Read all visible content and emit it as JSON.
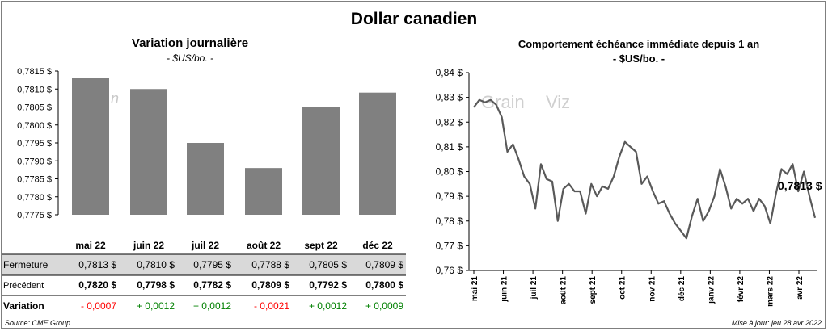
{
  "title": "Dollar canadien",
  "left_panel": {
    "title": "Variation  journalière",
    "subtitle": "- $US/bo. -"
  },
  "right_panel": {
    "title": "Comportement échéance immédiate depuis 1 an",
    "subtitle": "- $US/bo. -"
  },
  "table": {
    "months": [
      "mai 22",
      "juin 22",
      "juil 22",
      "août 22",
      "sept 22",
      "déc 22"
    ],
    "rows": [
      {
        "label": "Fermeture",
        "values": [
          "0,7813 $",
          "0,7810 $",
          "0,7795 $",
          "0,7788 $",
          "0,7805 $",
          "0,7809 $"
        ]
      },
      {
        "label": "Précédent",
        "values": [
          "0,7820 $",
          "0,7798 $",
          "0,7782 $",
          "0,7809 $",
          "0,7792 $",
          "0,7800 $"
        ]
      },
      {
        "label": "Variation",
        "values": [
          "- 0,0007",
          "+ 0,0012",
          "+ 0,0012",
          "- 0,0021",
          "+ 0,0012",
          "+ 0,0009"
        ]
      }
    ]
  },
  "colors": {
    "bar": "#808080",
    "line": "#595959",
    "negative": "#ff0000",
    "positive": "#008000",
    "shade": "#d9d9d9"
  },
  "chart_data": [
    {
      "type": "bar",
      "categories": [
        "mai 22",
        "juin 22",
        "juil 22",
        "août 22",
        "sept 22",
        "déc 22"
      ],
      "values": [
        0.7813,
        0.781,
        0.7795,
        0.7788,
        0.7805,
        0.7809
      ],
      "ylim": [
        0.7775,
        0.7815
      ],
      "yticks": [
        0.7775,
        0.778,
        0.7785,
        0.779,
        0.7795,
        0.78,
        0.7805,
        0.781,
        0.7815
      ],
      "ytick_labels": [
        "0,7775 $",
        "0,7780 $",
        "0,7785 $",
        "0,7790 $",
        "0,7795 $",
        "0,7800 $",
        "0,7805 $",
        "0,7810 $",
        "0,7815 $"
      ],
      "grid": false
    },
    {
      "type": "line",
      "xlabels": [
        "mai 21",
        "juin 21",
        "juil 21",
        "août 21",
        "sept 21",
        "oct 21",
        "nov 21",
        "déc 21",
        "janv 22",
        "févr 22",
        "mars 22",
        "avr 22"
      ],
      "ylim": [
        0.76,
        0.84
      ],
      "yticks": [
        0.76,
        0.77,
        0.78,
        0.79,
        0.8,
        0.81,
        0.82,
        0.83,
        0.84
      ],
      "ytick_labels": [
        "0,76 $",
        "0,77 $",
        "0,78 $",
        "0,79 $",
        "0,80 $",
        "0,81 $",
        "0,82 $",
        "0,83 $",
        "0,84 $"
      ],
      "last_value_label": "0,7813 $",
      "weekly_values": [
        0.826,
        0.829,
        0.828,
        0.829,
        0.827,
        0.822,
        0.808,
        0.811,
        0.805,
        0.798,
        0.795,
        0.785,
        0.803,
        0.797,
        0.796,
        0.78,
        0.793,
        0.795,
        0.792,
        0.792,
        0.783,
        0.795,
        0.79,
        0.794,
        0.793,
        0.798,
        0.806,
        0.812,
        0.81,
        0.808,
        0.795,
        0.798,
        0.792,
        0.787,
        0.788,
        0.783,
        0.779,
        0.776,
        0.773,
        0.782,
        0.789,
        0.78,
        0.784,
        0.79,
        0.801,
        0.794,
        0.785,
        0.789,
        0.787,
        0.789,
        0.784,
        0.789,
        0.786,
        0.779,
        0.791,
        0.801,
        0.799,
        0.803,
        0.792,
        0.8,
        0.79,
        0.7813
      ],
      "grid": false
    }
  ],
  "source": "Source: CME Group",
  "updated": "Mise à jour: jeu 28 avr 2022"
}
